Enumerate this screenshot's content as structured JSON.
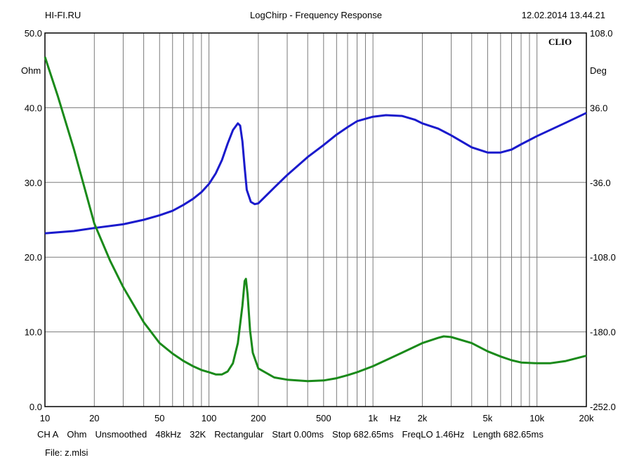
{
  "header": {
    "left": "HI-FI.RU",
    "center": "LogChirp - Frequency Response",
    "right": "12.02.2014 13.44.21"
  },
  "brand": "CLIO",
  "footer": {
    "items": [
      "CH A",
      "Ohm",
      "Unsmoothed",
      "48kHz",
      "32K",
      "Rectangular",
      "Start 0.00ms",
      "Stop 682.65ms",
      "FreqLO 1.46Hz",
      "Length 682.65ms"
    ],
    "file": "File: z.mlsi"
  },
  "chart_data": {
    "type": "line",
    "title": "LogChirp - Frequency Response",
    "xscale": "log",
    "xlim": [
      10,
      20000
    ],
    "ylim_left": [
      0,
      50
    ],
    "ylim_right": [
      -252,
      108
    ],
    "left_unit": "Ohm",
    "right_unit": "Deg",
    "xlabel": "Hz",
    "x_tick_labels": [
      {
        "v": 10,
        "t": "10"
      },
      {
        "v": 20,
        "t": "20"
      },
      {
        "v": 50,
        "t": "50"
      },
      {
        "v": 100,
        "t": "100"
      },
      {
        "v": 200,
        "t": "200"
      },
      {
        "v": 500,
        "t": "500"
      },
      {
        "v": 1000,
        "t": "1k"
      },
      {
        "v": 2000,
        "t": "2k"
      },
      {
        "v": 5000,
        "t": "5k"
      },
      {
        "v": 10000,
        "t": "10k"
      },
      {
        "v": 20000,
        "t": "20k"
      }
    ],
    "y_left_ticks": [
      "0.0",
      "10.0",
      "20.0",
      "30.0",
      "40.0",
      "50.0"
    ],
    "y_right_ticks": [
      "-252.0",
      "-180.0",
      "-108.0",
      "-36.0",
      "36.0",
      "108.0"
    ],
    "grid": true,
    "series": [
      {
        "color": "#1a1acc",
        "axis": "left",
        "points": [
          [
            10,
            23.2
          ],
          [
            15,
            23.5
          ],
          [
            20,
            23.9
          ],
          [
            30,
            24.4
          ],
          [
            40,
            25.0
          ],
          [
            50,
            25.6
          ],
          [
            60,
            26.2
          ],
          [
            70,
            27.0
          ],
          [
            80,
            27.8
          ],
          [
            90,
            28.7
          ],
          [
            100,
            29.8
          ],
          [
            110,
            31.2
          ],
          [
            120,
            33.0
          ],
          [
            130,
            35.2
          ],
          [
            140,
            37.0
          ],
          [
            150,
            37.9
          ],
          [
            155,
            37.6
          ],
          [
            160,
            35.5
          ],
          [
            165,
            32.0
          ],
          [
            170,
            29.0
          ],
          [
            180,
            27.4
          ],
          [
            190,
            27.1
          ],
          [
            200,
            27.2
          ],
          [
            250,
            29.3
          ],
          [
            300,
            31.0
          ],
          [
            400,
            33.4
          ],
          [
            500,
            35.0
          ],
          [
            600,
            36.4
          ],
          [
            700,
            37.4
          ],
          [
            800,
            38.2
          ],
          [
            1000,
            38.8
          ],
          [
            1200,
            39.0
          ],
          [
            1500,
            38.9
          ],
          [
            1800,
            38.4
          ],
          [
            2000,
            37.9
          ],
          [
            2500,
            37.2
          ],
          [
            3000,
            36.3
          ],
          [
            4000,
            34.7
          ],
          [
            5000,
            34.0
          ],
          [
            6000,
            34.0
          ],
          [
            7000,
            34.4
          ],
          [
            8000,
            35.1
          ],
          [
            10000,
            36.2
          ],
          [
            15000,
            38.0
          ],
          [
            20000,
            39.3
          ]
        ]
      },
      {
        "color": "#1a8a1a",
        "axis": "left",
        "points": [
          [
            10,
            46.8
          ],
          [
            12,
            41.5
          ],
          [
            15,
            34.5
          ],
          [
            20,
            24.5
          ],
          [
            25,
            19.5
          ],
          [
            30,
            16.0
          ],
          [
            40,
            11.3
          ],
          [
            50,
            8.5
          ],
          [
            60,
            7.1
          ],
          [
            70,
            6.1
          ],
          [
            80,
            5.4
          ],
          [
            90,
            4.9
          ],
          [
            100,
            4.6
          ],
          [
            110,
            4.3
          ],
          [
            120,
            4.3
          ],
          [
            130,
            4.7
          ],
          [
            140,
            5.8
          ],
          [
            150,
            8.5
          ],
          [
            160,
            13.5
          ],
          [
            165,
            16.8
          ],
          [
            168,
            17.1
          ],
          [
            172,
            15.0
          ],
          [
            178,
            10.2
          ],
          [
            185,
            7.2
          ],
          [
            200,
            5.1
          ],
          [
            250,
            3.9
          ],
          [
            300,
            3.6
          ],
          [
            400,
            3.4
          ],
          [
            500,
            3.5
          ],
          [
            600,
            3.8
          ],
          [
            700,
            4.2
          ],
          [
            800,
            4.6
          ],
          [
            1000,
            5.4
          ],
          [
            1500,
            7.2
          ],
          [
            2000,
            8.5
          ],
          [
            2500,
            9.2
          ],
          [
            2700,
            9.4
          ],
          [
            3000,
            9.3
          ],
          [
            4000,
            8.5
          ],
          [
            5000,
            7.4
          ],
          [
            6000,
            6.7
          ],
          [
            7000,
            6.2
          ],
          [
            8000,
            5.9
          ],
          [
            10000,
            5.8
          ],
          [
            12000,
            5.8
          ],
          [
            15000,
            6.1
          ],
          [
            20000,
            6.8
          ]
        ]
      }
    ]
  }
}
